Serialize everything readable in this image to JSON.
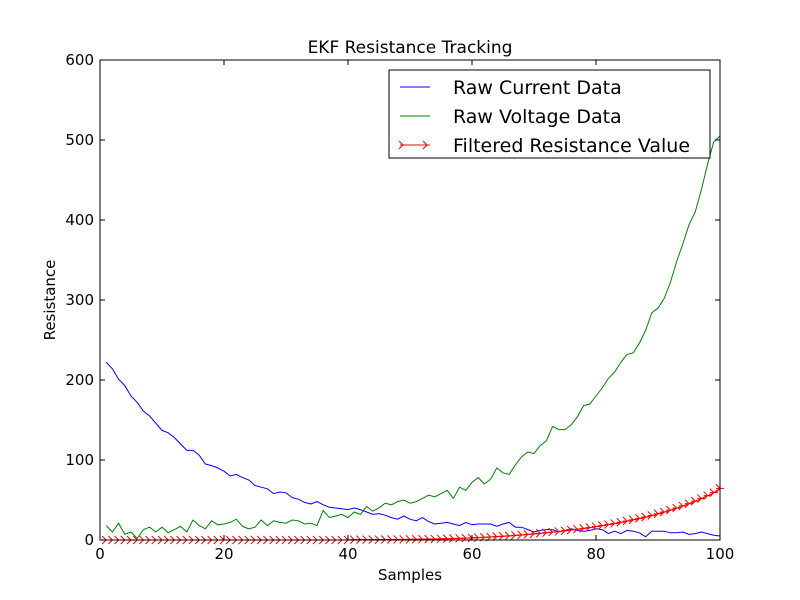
{
  "chart_data": {
    "type": "line",
    "title": "EKF Resistance Tracking",
    "xlabel": "Samples",
    "ylabel": "Resistance",
    "xlim": [
      0,
      100
    ],
    "ylim": [
      0,
      600
    ],
    "xticks": [
      0,
      20,
      40,
      60,
      80,
      100
    ],
    "yticks": [
      0,
      100,
      200,
      300,
      400,
      500,
      600
    ],
    "grid": false,
    "legend_placement": "top-right",
    "series": [
      {
        "name": "Raw Current Data",
        "color": "#0000ff",
        "marker": "none",
        "x": [
          1,
          2,
          3,
          4,
          5,
          6,
          7,
          8,
          9,
          10,
          11,
          12,
          13,
          14,
          15,
          16,
          17,
          18,
          19,
          20,
          21,
          22,
          23,
          24,
          25,
          26,
          27,
          28,
          29,
          30,
          31,
          32,
          33,
          34,
          35,
          36,
          37,
          38,
          39,
          40,
          41,
          42,
          43,
          44,
          45,
          46,
          47,
          48,
          49,
          50,
          51,
          52,
          53,
          54,
          55,
          56,
          57,
          58,
          59,
          60,
          61,
          62,
          63,
          64,
          65,
          66,
          67,
          68,
          69,
          70,
          71,
          72,
          73,
          74,
          75,
          76,
          77,
          78,
          79,
          80,
          81,
          82,
          83,
          84,
          85,
          86,
          87,
          88,
          89,
          90,
          91,
          92,
          93,
          94,
          95,
          96,
          97,
          98,
          99,
          100
        ],
        "values": [
          222,
          214,
          201,
          193,
          180,
          172,
          161,
          155,
          146,
          137,
          134,
          128,
          120,
          112,
          112,
          106,
          95,
          93,
          90,
          86,
          80,
          82,
          78,
          75,
          68,
          66,
          64,
          58,
          60,
          59,
          53,
          51,
          47,
          45,
          48,
          44,
          41,
          40,
          39,
          38,
          40,
          38,
          35,
          32,
          33,
          31,
          28,
          26,
          30,
          26,
          24,
          28,
          23,
          20,
          21,
          22,
          20,
          18,
          22,
          19,
          20,
          20,
          20,
          17,
          20,
          22,
          16,
          16,
          13,
          10,
          12,
          13,
          13,
          10,
          12,
          14,
          12,
          11,
          12,
          14,
          13,
          8,
          11,
          8,
          12,
          11,
          9,
          4,
          11,
          11,
          11,
          9,
          9,
          10,
          7,
          8,
          10,
          8,
          6,
          5
        ]
      },
      {
        "name": "Raw Voltage Data",
        "color": "#008000",
        "marker": "none",
        "x": [
          1,
          2,
          3,
          4,
          5,
          6,
          7,
          8,
          9,
          10,
          11,
          12,
          13,
          14,
          15,
          16,
          17,
          18,
          19,
          20,
          21,
          22,
          23,
          24,
          25,
          26,
          27,
          28,
          29,
          30,
          31,
          32,
          33,
          34,
          35,
          36,
          37,
          38,
          39,
          40,
          41,
          42,
          43,
          44,
          45,
          46,
          47,
          48,
          49,
          50,
          51,
          52,
          53,
          54,
          55,
          56,
          57,
          58,
          59,
          60,
          61,
          62,
          63,
          64,
          65,
          66,
          67,
          68,
          69,
          70,
          71,
          72,
          73,
          74,
          75,
          76,
          77,
          78,
          79,
          80,
          81,
          82,
          83,
          84,
          85,
          86,
          87,
          88,
          89,
          90,
          91,
          92,
          93,
          94,
          95,
          96,
          97,
          98,
          99,
          100
        ],
        "values": [
          18,
          10,
          21,
          7,
          10,
          2,
          13,
          16,
          10,
          16,
          9,
          13,
          17,
          10,
          25,
          18,
          14,
          24,
          19,
          20,
          22,
          26,
          17,
          14,
          16,
          25,
          18,
          24,
          22,
          21,
          25,
          24,
          20,
          21,
          18,
          37,
          28,
          30,
          32,
          28,
          35,
          32,
          42,
          36,
          40,
          46,
          44,
          48,
          50,
          46,
          48,
          52,
          56,
          54,
          58,
          62,
          52,
          66,
          62,
          72,
          78,
          70,
          76,
          90,
          84,
          82,
          94,
          104,
          110,
          108,
          118,
          124,
          142,
          138,
          138,
          144,
          154,
          168,
          170,
          180,
          190,
          202,
          210,
          222,
          232,
          234,
          246,
          262,
          284,
          290,
          302,
          322,
          348,
          370,
          394,
          410,
          438,
          470,
          498,
          505
        ]
      },
      {
        "name": "Filtered Resistance Value",
        "color": "#ff0000",
        "marker": "tri_right",
        "x": [
          1,
          2,
          3,
          4,
          5,
          6,
          7,
          8,
          9,
          10,
          11,
          12,
          13,
          14,
          15,
          16,
          17,
          18,
          19,
          20,
          21,
          22,
          23,
          24,
          25,
          26,
          27,
          28,
          29,
          30,
          31,
          32,
          33,
          34,
          35,
          36,
          37,
          38,
          39,
          40,
          41,
          42,
          43,
          44,
          45,
          46,
          47,
          48,
          49,
          50,
          51,
          52,
          53,
          54,
          55,
          56,
          57,
          58,
          59,
          60,
          61,
          62,
          63,
          64,
          65,
          66,
          67,
          68,
          69,
          70,
          71,
          72,
          73,
          74,
          75,
          76,
          77,
          78,
          79,
          80,
          81,
          82,
          83,
          84,
          85,
          86,
          87,
          88,
          89,
          90,
          91,
          92,
          93,
          94,
          95,
          96,
          97,
          98,
          99,
          100
        ],
        "values": [
          0,
          0,
          0,
          0,
          0,
          0,
          0,
          0,
          0,
          0,
          0,
          0,
          0,
          0,
          0,
          0,
          0,
          0,
          0,
          0,
          0,
          0,
          0,
          0,
          0,
          0,
          0,
          0,
          0,
          0,
          0,
          0,
          0,
          0,
          0,
          0,
          0,
          0,
          0,
          0,
          0.5,
          0.5,
          0.5,
          0.5,
          0.5,
          0.6,
          0.6,
          0.7,
          0.7,
          0.8,
          0.9,
          1,
          1.1,
          1.3,
          1.5,
          1.7,
          1.9,
          2.1,
          2.4,
          2.7,
          3,
          3.4,
          3.8,
          4.2,
          4.7,
          5.2,
          5.8,
          6.4,
          7,
          7.7,
          8.4,
          9.1,
          9.9,
          10.7,
          11.6,
          12.5,
          13.5,
          14.5,
          15.6,
          16.8,
          18,
          19.3,
          20.7,
          22.2,
          23.7,
          25.3,
          27,
          28.8,
          30.7,
          32.8,
          35,
          37.4,
          39.9,
          42.6,
          45.5,
          48.6,
          51.9,
          55.4,
          59.2,
          64.5
        ]
      }
    ]
  }
}
